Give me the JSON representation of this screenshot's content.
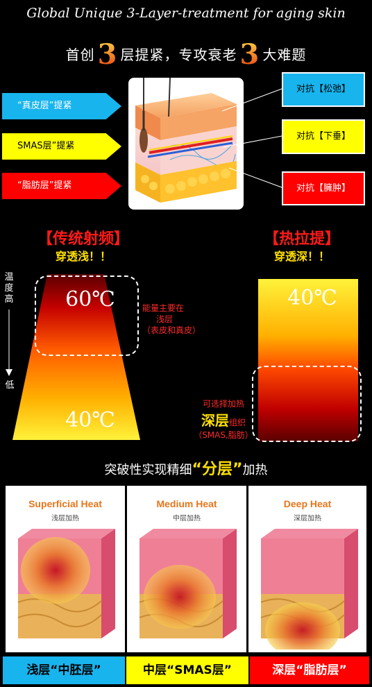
{
  "header": {
    "title": "Global Unique  3-Layer-treatment for aging skin",
    "headline_part1": "首创",
    "headline_num1": "3",
    "headline_part2": "层提紧，专攻衰老",
    "headline_num2": "3",
    "headline_part3": "大难题"
  },
  "layers": [
    {
      "label": "“真皮层”提紧",
      "color": "#18b4ee"
    },
    {
      "label": "SMAS层”提紧",
      "color": "#ffff00"
    },
    {
      "label": "“脂肪层”提紧",
      "color": "#ff0000"
    }
  ],
  "problems": [
    {
      "label": "对抗【松弛】",
      "color": "#18b4ee"
    },
    {
      "label": "对抗【下垂】",
      "color": "#ffff00"
    },
    {
      "label": "对抗【臃肿】",
      "color": "#ff0000"
    }
  ],
  "comparison": {
    "left": {
      "title": "【传统射频】",
      "subtitle": "穿透浅！！",
      "temp_high": "60℃",
      "temp_low": "40℃",
      "note_line1": "能量主要在",
      "note_line2": "浅层",
      "note_line3": "（表皮和真皮）"
    },
    "right": {
      "title": "【热拉提】",
      "subtitle": "穿透深！！",
      "temp": "40℃",
      "note_line1": "可选择加热",
      "note_deep": "深层",
      "note_tissue": "组织",
      "note_line3": "（SMAS,脂肪）"
    },
    "axis": {
      "label_top": "温度高",
      "label_bottom": "低"
    }
  },
  "breakthrough": {
    "prefix": "突破性实现精细",
    "highlight": "“分层”",
    "suffix": "加热"
  },
  "panels": [
    {
      "title": "Superficial Heat",
      "subtitle": "浅层加热",
      "label": "浅层“中胚层”",
      "label_bg": "#18b4ee",
      "label_color": "#000000"
    },
    {
      "title": "Medium Heat",
      "subtitle": "中层加热",
      "label": "中层“SMAS层”",
      "label_bg": "#ffff00",
      "label_color": "#000000"
    },
    {
      "title": "Deep Heat",
      "subtitle": "深层加热",
      "label": "深层“脂肪层”",
      "label_bg": "#ff0000",
      "label_color": "#ffffff"
    }
  ]
}
